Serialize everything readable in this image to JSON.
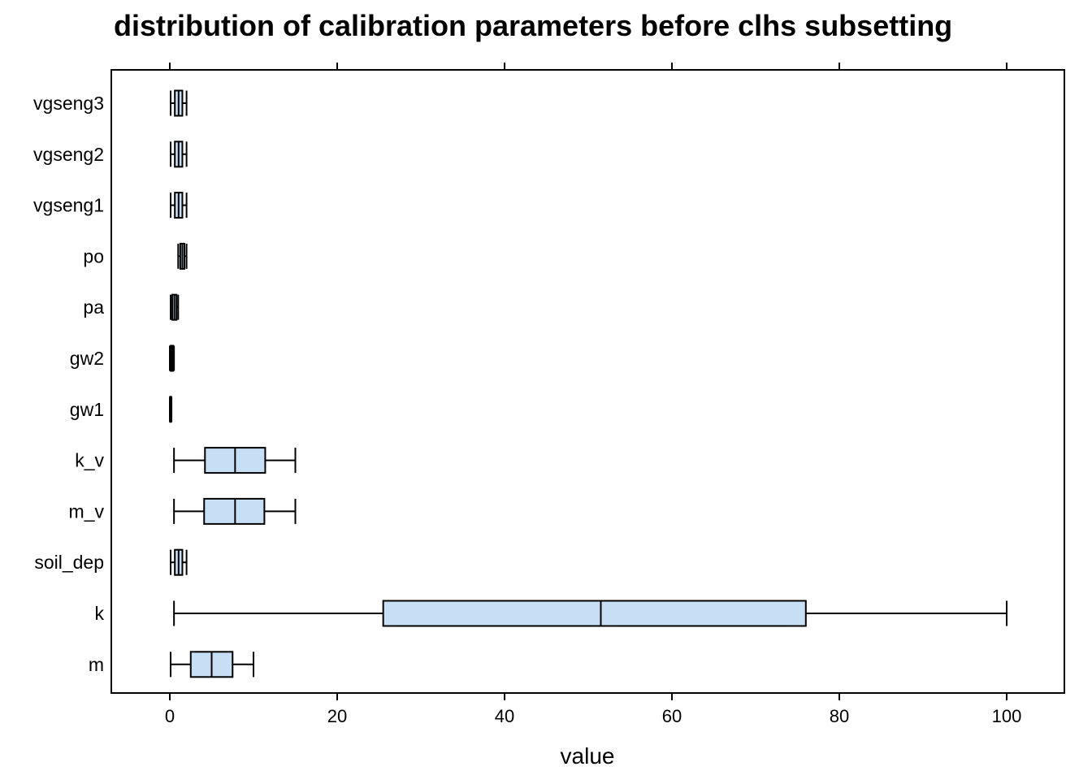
{
  "chart_data": {
    "type": "boxplot",
    "orientation": "horizontal",
    "title": "distribution of calibration parameters before clhs subsetting",
    "xlabel": "value",
    "ylabel": "",
    "xlim": [
      -7,
      107
    ],
    "x_ticks": [
      0,
      20,
      40,
      60,
      80,
      100
    ],
    "x_tick_labels": [
      "0",
      "20",
      "40",
      "60",
      "80",
      "100"
    ],
    "grid": false,
    "legend": "none",
    "box_fill": "#c6dff5",
    "line_color": "#000000",
    "categories": [
      "vgseng3",
      "vgseng2",
      "vgseng1",
      "po",
      "pa",
      "gw2",
      "gw1",
      "k_v",
      "m_v",
      "soil_dep",
      "k",
      "m"
    ],
    "boxes": [
      {
        "name": "vgseng3",
        "min": 0.1,
        "q1": 0.6,
        "median": 1.05,
        "q3": 1.5,
        "max": 2.0
      },
      {
        "name": "vgseng2",
        "min": 0.1,
        "q1": 0.6,
        "median": 1.05,
        "q3": 1.5,
        "max": 2.0
      },
      {
        "name": "vgseng1",
        "min": 0.1,
        "q1": 0.6,
        "median": 1.05,
        "q3": 1.5,
        "max": 2.0
      },
      {
        "name": "po",
        "min": 1.0,
        "q1": 1.25,
        "median": 1.5,
        "q3": 1.75,
        "max": 2.0
      },
      {
        "name": "pa",
        "min": 0.1,
        "q1": 0.3,
        "median": 0.55,
        "q3": 0.8,
        "max": 1.0
      },
      {
        "name": "gw2",
        "min": 0.0,
        "q1": 0.1,
        "median": 0.25,
        "q3": 0.4,
        "max": 0.5
      },
      {
        "name": "gw1",
        "min": 0.0,
        "q1": 0.05,
        "median": 0.1,
        "q3": 0.15,
        "max": 0.2
      },
      {
        "name": "k_v",
        "min": 0.5,
        "q1": 4.2,
        "median": 7.8,
        "q3": 11.4,
        "max": 15.0
      },
      {
        "name": "m_v",
        "min": 0.5,
        "q1": 4.1,
        "median": 7.8,
        "q3": 11.3,
        "max": 15.0
      },
      {
        "name": "soil_dep",
        "min": 0.1,
        "q1": 0.6,
        "median": 1.05,
        "q3": 1.5,
        "max": 2.0
      },
      {
        "name": "k",
        "min": 0.5,
        "q1": 25.5,
        "median": 51.5,
        "q3": 76.0,
        "max": 100.0
      },
      {
        "name": "m",
        "min": 0.1,
        "q1": 2.5,
        "median": 5.0,
        "q3": 7.5,
        "max": 10.0
      }
    ]
  }
}
